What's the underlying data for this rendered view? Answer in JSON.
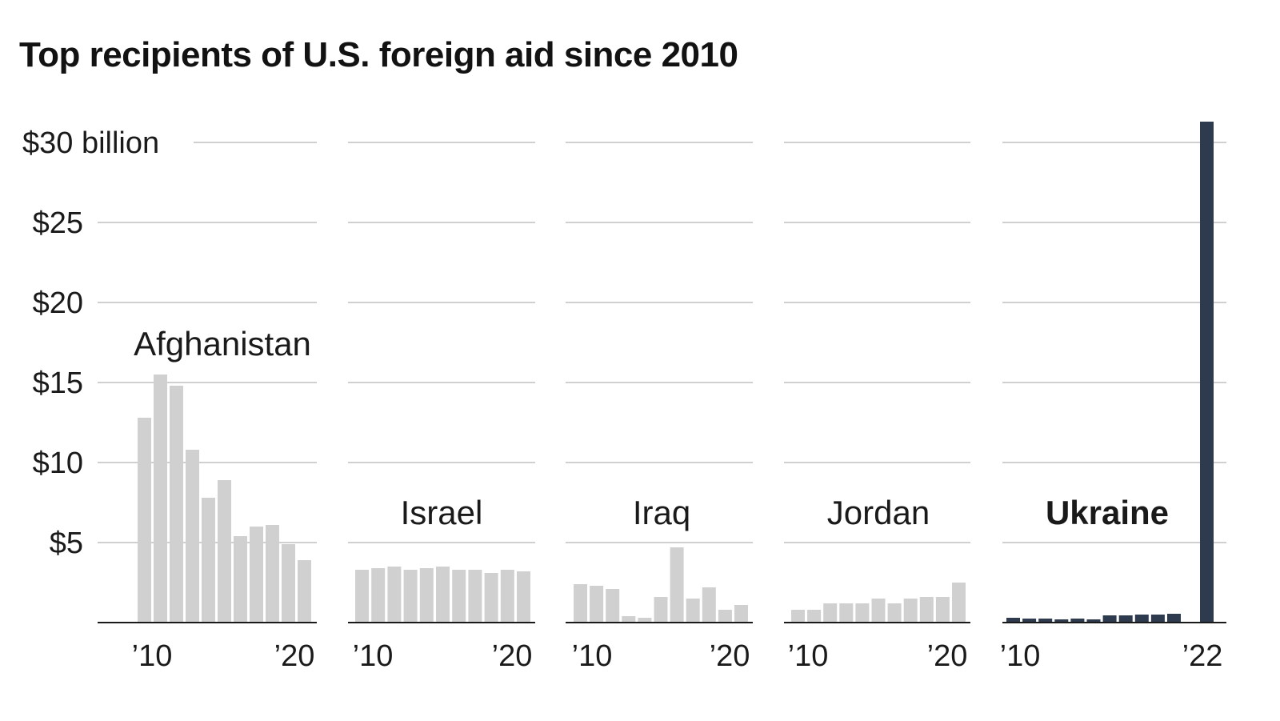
{
  "title": "Top recipients of U.S. foreign aid since 2010",
  "colors": {
    "bar": "#d0d0d0",
    "highlight": "#2e3b4e",
    "grid": "#d0d0d0",
    "text": "#1a1a1a"
  },
  "chart_data": {
    "type": "bar",
    "title": "Top recipients of U.S. foreign aid since 2010",
    "ylabel": "",
    "xlabel": "",
    "ylim": [
      0,
      30
    ],
    "yticks": [
      {
        "value": 5,
        "label": "$5"
      },
      {
        "value": 10,
        "label": "$10"
      },
      {
        "value": 15,
        "label": "$15"
      },
      {
        "value": 20,
        "label": "$20"
      },
      {
        "value": 25,
        "label": "$25"
      },
      {
        "value": 30,
        "label": "$30 billion"
      }
    ],
    "panels": [
      {
        "name": "Afghanistan",
        "highlight": false,
        "years": [
          2010,
          2011,
          2012,
          2013,
          2014,
          2015,
          2016,
          2017,
          2018,
          2019,
          2020
        ],
        "values": [
          12.8,
          15.5,
          14.8,
          10.8,
          7.8,
          8.9,
          5.4,
          6.0,
          6.1,
          4.9,
          3.9
        ],
        "xtick_labels": [
          "’10",
          "’20"
        ]
      },
      {
        "name": "Israel",
        "highlight": false,
        "years": [
          2010,
          2011,
          2012,
          2013,
          2014,
          2015,
          2016,
          2017,
          2018,
          2019,
          2020
        ],
        "values": [
          3.3,
          3.4,
          3.5,
          3.3,
          3.4,
          3.5,
          3.3,
          3.3,
          3.1,
          3.3,
          3.2
        ],
        "xtick_labels": [
          "’10",
          "’20"
        ]
      },
      {
        "name": "Iraq",
        "highlight": false,
        "years": [
          2010,
          2011,
          2012,
          2013,
          2014,
          2015,
          2016,
          2017,
          2018,
          2019,
          2020
        ],
        "values": [
          2.4,
          2.3,
          2.1,
          0.4,
          0.3,
          1.6,
          4.7,
          1.5,
          2.2,
          0.8,
          1.1
        ],
        "xtick_labels": [
          "’10",
          "’20"
        ]
      },
      {
        "name": "Jordan",
        "highlight": false,
        "years": [
          2010,
          2011,
          2012,
          2013,
          2014,
          2015,
          2016,
          2017,
          2018,
          2019,
          2020
        ],
        "values": [
          0.8,
          0.8,
          1.2,
          1.2,
          1.2,
          1.5,
          1.2,
          1.5,
          1.6,
          1.6,
          2.5
        ],
        "xtick_labels": [
          "’10",
          "’20"
        ]
      },
      {
        "name": "Ukraine",
        "highlight": true,
        "years": [
          2010,
          2011,
          2012,
          2013,
          2014,
          2015,
          2016,
          2017,
          2018,
          2019,
          2020,
          2021,
          2022
        ],
        "values": [
          0.3,
          0.25,
          0.25,
          0.2,
          0.25,
          0.2,
          0.45,
          0.45,
          0.5,
          0.5,
          0.55,
          null,
          31.3
        ],
        "xtick_labels": [
          "’10",
          "’22"
        ]
      }
    ]
  }
}
